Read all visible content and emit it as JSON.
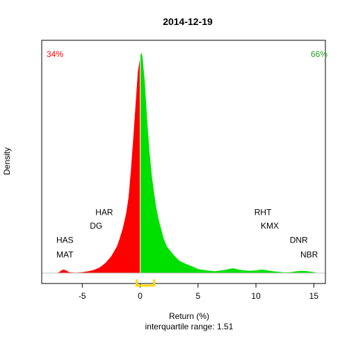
{
  "chart_data": {
    "type": "area",
    "title": "2014-12-19",
    "xlabel": "Return (%)",
    "ylabel": "Density",
    "subtitle": "interquartile range: 1.51",
    "xlim": [
      -8.5,
      16
    ],
    "ylim": [
      0,
      1.0
    ],
    "x_ticks": [
      -5,
      0,
      5,
      10,
      15
    ],
    "x_tick_labels": [
      "-5",
      "0",
      "5",
      "10",
      "15"
    ],
    "negative_share_label": "34%",
    "positive_share_label": "66%",
    "negative_color": "#ff0000",
    "positive_color": "#00e000",
    "iqr_color": "#ffd700",
    "iqr": [
      -0.3,
      1.21
    ],
    "density": {
      "x": [
        -7.3,
        -7.0,
        -6.8,
        -6.6,
        -6.4,
        -6.2,
        -6.0,
        -5.5,
        -5.0,
        -4.5,
        -4.0,
        -3.5,
        -3.0,
        -2.5,
        -2.0,
        -1.8,
        -1.5,
        -1.2,
        -1.0,
        -0.8,
        -0.6,
        -0.4,
        -0.2,
        0.0,
        0.1,
        0.2,
        0.4,
        0.6,
        0.8,
        1.0,
        1.2,
        1.4,
        1.6,
        1.8,
        2.0,
        2.3,
        2.6,
        3.0,
        3.4,
        4.0,
        4.5,
        5.0,
        5.5,
        6.0,
        6.5,
        7.0,
        7.5,
        8.0,
        8.5,
        9.0,
        9.5,
        10.0,
        10.5,
        11.0,
        11.5,
        12.0,
        12.5,
        13.0,
        13.5,
        14.0,
        14.5,
        15.0,
        15.5
      ],
      "y": [
        0,
        0.004,
        0.012,
        0.016,
        0.012,
        0.006,
        0.003,
        0.002,
        0.004,
        0.008,
        0.014,
        0.025,
        0.045,
        0.075,
        0.12,
        0.15,
        0.2,
        0.27,
        0.34,
        0.46,
        0.6,
        0.75,
        0.9,
        0.97,
        0.99,
        0.97,
        0.86,
        0.69,
        0.55,
        0.44,
        0.36,
        0.29,
        0.24,
        0.2,
        0.16,
        0.12,
        0.1,
        0.075,
        0.055,
        0.04,
        0.03,
        0.018,
        0.014,
        0.01,
        0.008,
        0.012,
        0.016,
        0.022,
        0.016,
        0.012,
        0.01,
        0.012,
        0.016,
        0.012,
        0.008,
        0.005,
        0.003,
        0.004,
        0.008,
        0.01,
        0.008,
        0.004,
        0
      ]
    },
    "annotations": [
      {
        "label": "HAS",
        "x": -6.5,
        "y": 0.135
      },
      {
        "label": "MAT",
        "x": -6.5,
        "y": 0.07
      },
      {
        "label": "HAR",
        "x": -3.1,
        "y": 0.26
      },
      {
        "label": "DG",
        "x": -3.8,
        "y": 0.2
      },
      {
        "label": "RHT",
        "x": 10.6,
        "y": 0.26
      },
      {
        "label": "KMX",
        "x": 11.2,
        "y": 0.2
      },
      {
        "label": "DNR",
        "x": 13.7,
        "y": 0.135
      },
      {
        "label": "NBR",
        "x": 14.6,
        "y": 0.07
      }
    ]
  }
}
